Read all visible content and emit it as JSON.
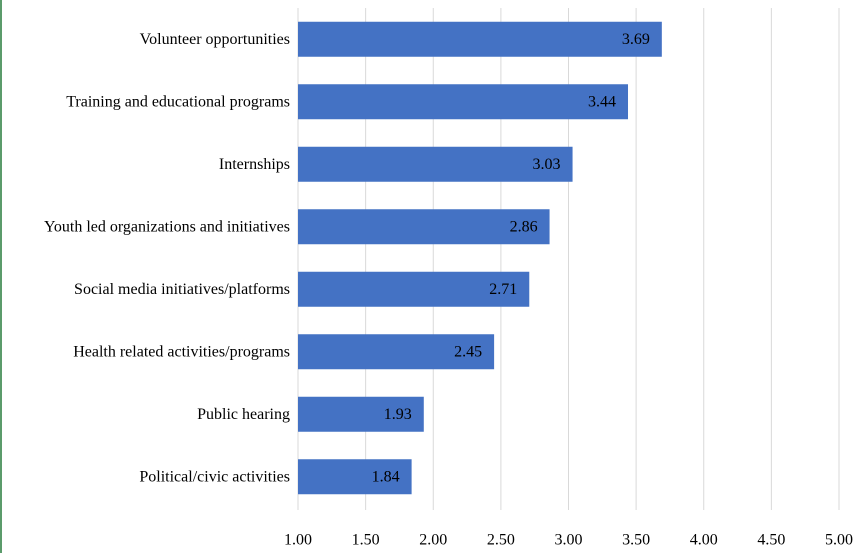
{
  "chart_data": {
    "type": "bar",
    "orientation": "horizontal",
    "categories": [
      "Volunteer opportunities",
      "Training and educational programs",
      "Internships",
      "Youth led organizations and initiatives",
      "Social media initiatives/platforms",
      "Health related activities/programs",
      "Public hearing",
      "Political/civic activities"
    ],
    "values": [
      3.69,
      3.44,
      3.03,
      2.86,
      2.71,
      2.45,
      1.93,
      1.84
    ],
    "color": "#4472c4",
    "xlim": [
      1,
      5
    ],
    "xticks": [
      {
        "value": 1,
        "label": "1.00"
      },
      {
        "value": 1.5,
        "label": "1.50"
      },
      {
        "value": 2,
        "label": "2.00"
      },
      {
        "value": 2.5,
        "label": "2.50"
      },
      {
        "value": 3,
        "label": "3.00"
      },
      {
        "value": 3.5,
        "label": "3.50"
      },
      {
        "value": 4,
        "label": "4.00"
      },
      {
        "value": 4.5,
        "label": "4.50"
      },
      {
        "value": 5,
        "label": "5.00"
      }
    ],
    "grid": true
  }
}
